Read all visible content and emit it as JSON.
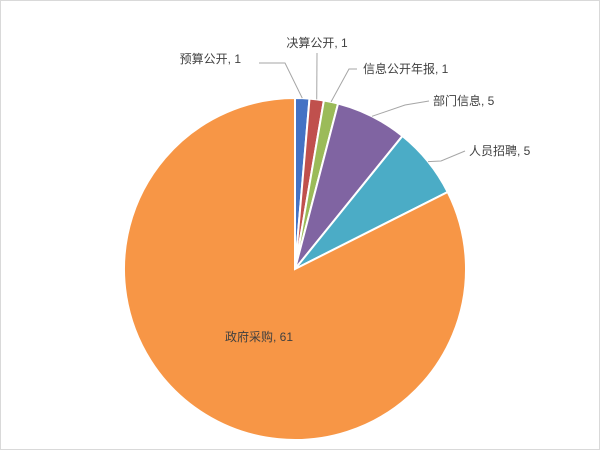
{
  "chart_data": {
    "type": "pie",
    "title": "",
    "start_angle_deg": 0,
    "direction": "clockwise",
    "slices": [
      {
        "category": "预算公开",
        "value": 1,
        "label": "预算公开, 1",
        "color": "#4472C4"
      },
      {
        "category": "决算公开",
        "value": 1,
        "label": "决算公开, 1",
        "color": "#C0504D"
      },
      {
        "category": "信息公开年报",
        "value": 1,
        "label": "信息公开年报, 1",
        "color": "#9BBB59"
      },
      {
        "category": "部门信息",
        "value": 5,
        "label": "部门信息, 5",
        "color": "#8064A2"
      },
      {
        "category": "人员招聘",
        "value": 5,
        "label": "人员招聘, 5",
        "color": "#4BACC6"
      },
      {
        "category": "政府采购",
        "value": 61,
        "label": "政府采购, 61",
        "color": "#F79646"
      }
    ],
    "legend": "none",
    "data_labels": "outside-with-leaders"
  }
}
